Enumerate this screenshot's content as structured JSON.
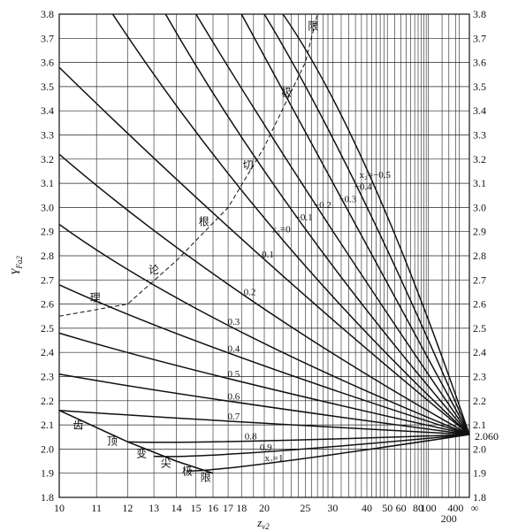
{
  "chart_data": {
    "type": "line",
    "xlabel": "z_v2",
    "ylabel": "Y_Fa2",
    "x_scale": "reciprocal",
    "ylim": [
      1.8,
      3.8
    ],
    "y_ticks": [
      "1.8",
      "1.9",
      "2.0",
      "2.1",
      "2.2",
      "2.3",
      "2.4",
      "2.5",
      "2.6",
      "2.7",
      "2.8",
      "2.9",
      "3.0",
      "3.1",
      "3.2",
      "3.3",
      "3.4",
      "3.5",
      "3.6",
      "3.7",
      "3.8"
    ],
    "x_ticks": [
      {
        "value": 10,
        "label": "10"
      },
      {
        "value": 11,
        "label": "11"
      },
      {
        "value": 12,
        "label": "12"
      },
      {
        "value": 13,
        "label": "13"
      },
      {
        "value": 14,
        "label": "14"
      },
      {
        "value": 15,
        "label": "15"
      },
      {
        "value": 16,
        "label": "16"
      },
      {
        "value": 17,
        "label": "17"
      },
      {
        "value": 18,
        "label": "18"
      },
      {
        "value": 20,
        "label": "20"
      },
      {
        "value": 25,
        "label": "25"
      },
      {
        "value": 30,
        "label": "30"
      },
      {
        "value": 40,
        "label": "40"
      },
      {
        "value": 50,
        "label": "50"
      },
      {
        "value": 60,
        "label": "60"
      },
      {
        "value": 80,
        "label": "80"
      },
      {
        "value": 100,
        "label": "100"
      },
      {
        "value": 200,
        "label": "200"
      },
      {
        "value": 400,
        "label": "400"
      },
      {
        "value": "inf",
        "label": "∞"
      }
    ],
    "grid": true,
    "converge_label": "2.060",
    "series": [
      {
        "name": "x2=−0.5",
        "label": "x₂=−0.5",
        "points": [
          [
            22,
            3.8
          ],
          [
            40,
            3.3
          ],
          [
            "inf",
            2.06
          ]
        ]
      },
      {
        "name": "x2=−0.4",
        "label": "−0.4",
        "points": [
          [
            20,
            3.8
          ],
          [
            35,
            3.2
          ],
          [
            "inf",
            2.06
          ]
        ]
      },
      {
        "name": "x2=−0.3",
        "label": "−0.3",
        "points": [
          [
            18,
            3.8
          ],
          [
            30,
            3.1
          ],
          [
            "inf",
            2.06
          ]
        ]
      },
      {
        "name": "x2=−0.2",
        "label": "−0.2",
        "points": [
          [
            15,
            3.8
          ],
          [
            25,
            3.05
          ],
          [
            "inf",
            2.06
          ]
        ]
      },
      {
        "name": "x2=−0.1",
        "label": "−0.1",
        "points": [
          [
            13.5,
            3.8
          ],
          [
            22,
            2.95
          ],
          [
            "inf",
            2.06
          ]
        ]
      },
      {
        "name": "x2=0",
        "label": "x₂=0",
        "points": [
          [
            11.5,
            3.8
          ],
          [
            20,
            2.85
          ],
          [
            "inf",
            2.06
          ]
        ]
      },
      {
        "name": "x2=0.1",
        "label": "0.1",
        "points": [
          [
            10,
            3.58
          ],
          [
            20,
            2.75
          ],
          [
            "inf",
            2.06
          ]
        ]
      },
      {
        "name": "x2=0.2",
        "label": "0.2",
        "points": [
          [
            10,
            3.22
          ],
          [
            17,
            2.62
          ],
          [
            "inf",
            2.06
          ]
        ]
      },
      {
        "name": "x2=0.3",
        "label": "0.3",
        "points": [
          [
            10,
            2.93
          ],
          [
            15,
            2.52
          ],
          [
            "inf",
            2.06
          ]
        ]
      },
      {
        "name": "x2=0.4",
        "label": "0.4",
        "points": [
          [
            10,
            2.68
          ],
          [
            15,
            2.42
          ],
          [
            "inf",
            2.06
          ]
        ]
      },
      {
        "name": "x2=0.5",
        "label": "0.5",
        "points": [
          [
            10,
            2.48
          ],
          [
            15,
            2.31
          ],
          [
            "inf",
            2.06
          ]
        ]
      },
      {
        "name": "x2=0.6",
        "label": "0.6",
        "points": [
          [
            10,
            2.31
          ],
          [
            15,
            2.21
          ],
          [
            "inf",
            2.06
          ]
        ]
      },
      {
        "name": "x2=0.7",
        "label": "0.7",
        "points": [
          [
            10,
            2.16
          ],
          [
            15,
            2.12
          ],
          [
            "inf",
            2.06
          ]
        ]
      },
      {
        "name": "x2=0.8",
        "label": "0.8",
        "points": [
          [
            12,
            2.03
          ],
          [
            15,
            2.02
          ],
          [
            "inf",
            2.06
          ]
        ]
      },
      {
        "name": "x2=0.9",
        "label": "0.9",
        "points": [
          [
            13,
            1.97
          ],
          [
            16,
            1.96
          ],
          [
            "inf",
            2.06
          ]
        ]
      },
      {
        "name": "x2=1",
        "label": "x₂=1",
        "points": [
          [
            14.5,
            1.91
          ],
          [
            16,
            1.9
          ],
          [
            "inf",
            2.06
          ]
        ]
      }
    ],
    "limit_curves": [
      {
        "name": "理论根切极限",
        "chars": [
          "理",
          "论",
          "根",
          "切",
          "极",
          "限"
        ],
        "style": "dashed",
        "points": [
          [
            10,
            2.55
          ],
          [
            12,
            2.6
          ],
          [
            14,
            2.78
          ],
          [
            17,
            3.0
          ],
          [
            20,
            3.25
          ],
          [
            25,
            3.6
          ],
          [
            27,
            3.8
          ]
        ]
      },
      {
        "name": "齿顶变尖极限",
        "chars": [
          "齿",
          "顶",
          "变",
          "尖",
          "极",
          "限"
        ],
        "style": "solid",
        "points": [
          [
            10,
            2.16
          ],
          [
            12,
            2.03
          ],
          [
            14,
            1.95
          ],
          [
            16,
            1.9
          ]
        ]
      }
    ]
  }
}
